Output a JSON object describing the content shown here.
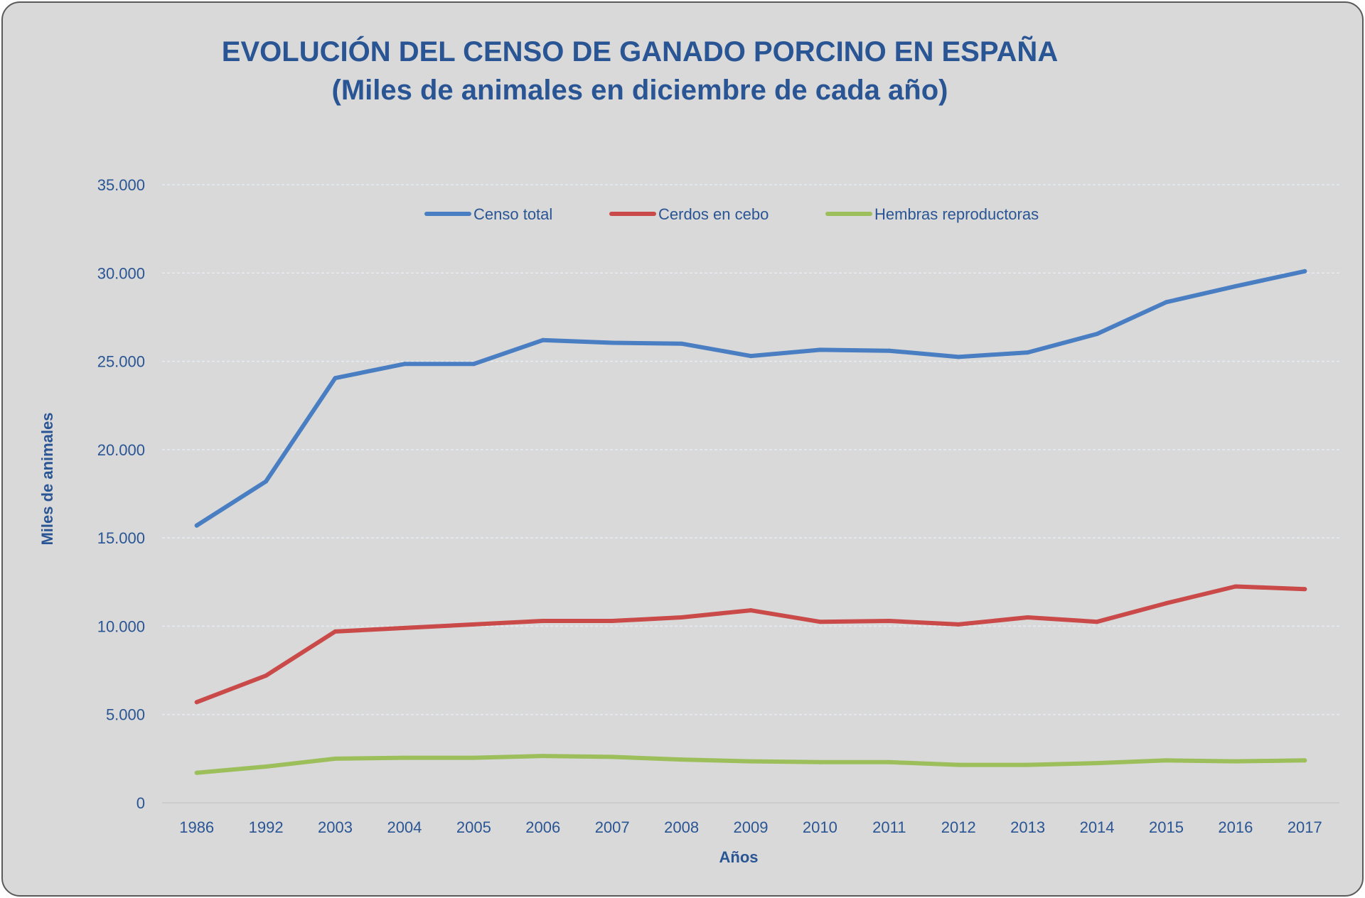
{
  "chart_data": {
    "type": "line",
    "title": "EVOLUCIÓN DEL CENSO DE GANADO PORCINO EN ESPAÑA",
    "subtitle": "(Miles de animales en diciembre de cada año)",
    "xlabel": "Años",
    "ylabel": "Miles de animales",
    "categories": [
      "1986",
      "1992",
      "2003",
      "2004",
      "2005",
      "2006",
      "2007",
      "2008",
      "2009",
      "2010",
      "2011",
      "2012",
      "2013",
      "2014",
      "2015",
      "2016",
      "2017"
    ],
    "ylim": [
      0,
      35000
    ],
    "yticks": [
      0,
      5000,
      10000,
      15000,
      20000,
      25000,
      30000,
      35000
    ],
    "ytick_labels": [
      "0",
      "5.000",
      "10.000",
      "15.000",
      "20.000",
      "25.000",
      "30.000",
      "35.000"
    ],
    "grid": true,
    "legend_position": "top-center",
    "series": [
      {
        "name": "Censo total",
        "color": "#4a7ec2",
        "values": [
          15700,
          18200,
          24050,
          24850,
          24850,
          26200,
          26050,
          26000,
          25300,
          25650,
          25600,
          25250,
          25500,
          26550,
          28350,
          29250,
          30100
        ]
      },
      {
        "name": "Cerdos en cebo",
        "color": "#c94a48",
        "values": [
          5700,
          7200,
          9700,
          9900,
          10100,
          10300,
          10300,
          10500,
          10900,
          10250,
          10300,
          10100,
          10500,
          10250,
          11300,
          12250,
          12100
        ]
      },
      {
        "name": "Hembras reproductoras",
        "color": "#9cbf5c",
        "values": [
          1700,
          2050,
          2500,
          2550,
          2550,
          2650,
          2600,
          2450,
          2350,
          2300,
          2300,
          2150,
          2150,
          2250,
          2400,
          2350,
          2400
        ]
      }
    ]
  }
}
